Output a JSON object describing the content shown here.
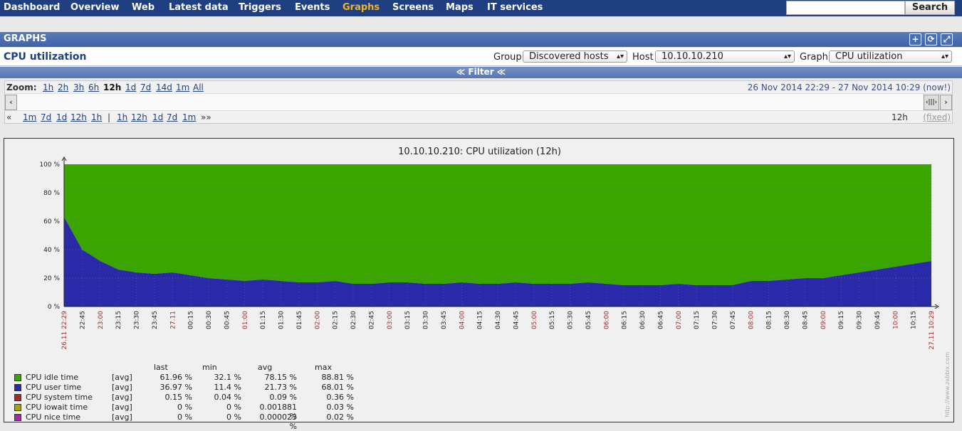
{
  "nav": {
    "items": [
      "Dashboard",
      "Overview",
      "Web",
      "Latest data",
      "Triggers",
      "Events",
      "Graphs",
      "Screens",
      "Maps",
      "IT services"
    ],
    "active": "Graphs",
    "search_button": "Search",
    "search_value": ""
  },
  "header": {
    "section_title": "GRAPHS",
    "page_title": "CPU utilization",
    "group_label": "Group",
    "group_value": "Discovered hosts",
    "host_label": "Host",
    "host_value": "10.10.10.210",
    "graph_label": "Graph",
    "graph_value": "CPU utilization",
    "filter_label": "Filter",
    "buttons": [
      "add-icon",
      "refresh-icon",
      "fullscreen-icon"
    ]
  },
  "zoom": {
    "label": "Zoom:",
    "options": [
      "1h",
      "2h",
      "3h",
      "6h",
      "12h",
      "1d",
      "7d",
      "14d",
      "1m",
      "All"
    ],
    "current": "12h",
    "period_text": "26 Nov 2014 22:29  -  27 Nov 2014 10:29 (now!)",
    "back_arrows": "«",
    "back_links": [
      "1m",
      "7d",
      "1d",
      "12h",
      "1h"
    ],
    "separator": "|",
    "fwd_links": [
      "1h",
      "12h",
      "1d",
      "7d",
      "1m"
    ],
    "fwd_arrows": "»»",
    "period_len": "12h",
    "fixed": "(fixed)"
  },
  "chart_data": {
    "type": "area",
    "title": "10.10.10.210: CPU utilization (12h)",
    "ylim": [
      0,
      100
    ],
    "y_ticks": [
      "0 %",
      "20 %",
      "40 %",
      "60 %",
      "80 %",
      "100 %"
    ],
    "x_ticks": [
      "26.11 22:29",
      "22:45",
      "23:00",
      "23:15",
      "23:30",
      "23:45",
      "27.11",
      "00:15",
      "00:30",
      "00:45",
      "01:00",
      "01:15",
      "01:30",
      "01:45",
      "02:00",
      "02:15",
      "02:30",
      "02:45",
      "03:00",
      "03:15",
      "03:30",
      "03:45",
      "04:00",
      "04:15",
      "04:30",
      "04:45",
      "05:00",
      "05:15",
      "05:30",
      "05:45",
      "06:00",
      "06:15",
      "06:30",
      "06:45",
      "07:00",
      "07:15",
      "07:30",
      "07:45",
      "08:00",
      "08:15",
      "08:30",
      "08:45",
      "09:00",
      "09:15",
      "09:30",
      "09:45",
      "10:00",
      "10:15",
      "27.11 10:29"
    ],
    "x_tick_highlight": [
      "26.11 22:29",
      "23:00",
      "27.11",
      "01:00",
      "02:00",
      "03:00",
      "04:00",
      "05:00",
      "06:00",
      "07:00",
      "08:00",
      "09:00",
      "10:00",
      "27.11 10:29"
    ],
    "grid": true,
    "x": [
      "22:29",
      "22:45",
      "23:00",
      "23:15",
      "23:30",
      "23:45",
      "00:00",
      "00:15",
      "00:30",
      "00:45",
      "01:00",
      "01:15",
      "01:30",
      "01:45",
      "02:00",
      "02:15",
      "02:30",
      "02:45",
      "03:00",
      "03:15",
      "03:30",
      "03:45",
      "04:00",
      "04:15",
      "04:30",
      "04:45",
      "05:00",
      "05:15",
      "05:30",
      "05:45",
      "06:00",
      "06:15",
      "06:30",
      "06:45",
      "07:00",
      "07:15",
      "07:30",
      "07:45",
      "08:00",
      "08:15",
      "08:30",
      "08:45",
      "09:00",
      "09:15",
      "09:30",
      "09:45",
      "10:00",
      "10:15",
      "10:29"
    ],
    "series": [
      {
        "name": "CPU user time",
        "color": "#2a2aa8",
        "values": [
          63,
          40,
          32,
          26,
          24,
          23,
          24,
          22,
          20,
          19,
          18,
          19,
          18,
          17,
          17,
          18,
          16,
          16,
          17,
          17,
          16,
          16,
          17,
          16,
          16,
          17,
          16,
          16,
          16,
          17,
          16,
          15,
          15,
          15,
          16,
          15,
          15,
          15,
          18,
          18,
          19,
          20,
          20,
          22,
          24,
          26,
          28,
          30,
          32
        ]
      },
      {
        "name": "CPU idle time",
        "color": "#3ba500",
        "values": [
          37,
          60,
          68,
          74,
          76,
          77,
          76,
          78,
          80,
          81,
          82,
          81,
          82,
          83,
          83,
          82,
          84,
          84,
          83,
          83,
          84,
          84,
          83,
          84,
          84,
          83,
          84,
          84,
          84,
          83,
          84,
          85,
          85,
          85,
          84,
          85,
          85,
          85,
          82,
          82,
          81,
          80,
          80,
          78,
          76,
          74,
          72,
          70,
          68
        ]
      }
    ]
  },
  "legend": {
    "headers": [
      "last",
      "min",
      "avg",
      "max"
    ],
    "rows": [
      {
        "name": "CPU idle time",
        "fn": "[avg]",
        "last": "61.96 %",
        "min": "32.1 %",
        "avg": "78.15 %",
        "max": "88.81 %",
        "color": "#3ba500"
      },
      {
        "name": "CPU user time",
        "fn": "[avg]",
        "last": "36.97 %",
        "min": "11.4 %",
        "avg": "21.73 %",
        "max": "68.01 %",
        "color": "#2a2aa8"
      },
      {
        "name": "CPU system time",
        "fn": "[avg]",
        "last": "0.15 %",
        "min": "0.04 %",
        "avg": "0.09 %",
        "max": "0.36 %",
        "color": "#a52a2a"
      },
      {
        "name": "CPU iowait time",
        "fn": "[avg]",
        "last": "0 %",
        "min": "0 %",
        "avg": "0.001881 %",
        "max": "0.03 %",
        "color": "#a5a500"
      },
      {
        "name": "CPU nice time",
        "fn": "[avg]",
        "last": "0 %",
        "min": "0 %",
        "avg": "0.000023 %",
        "max": "0.02 %",
        "color": "#a52aa5"
      }
    ]
  },
  "watermark": "http://www.zabbix.com"
}
